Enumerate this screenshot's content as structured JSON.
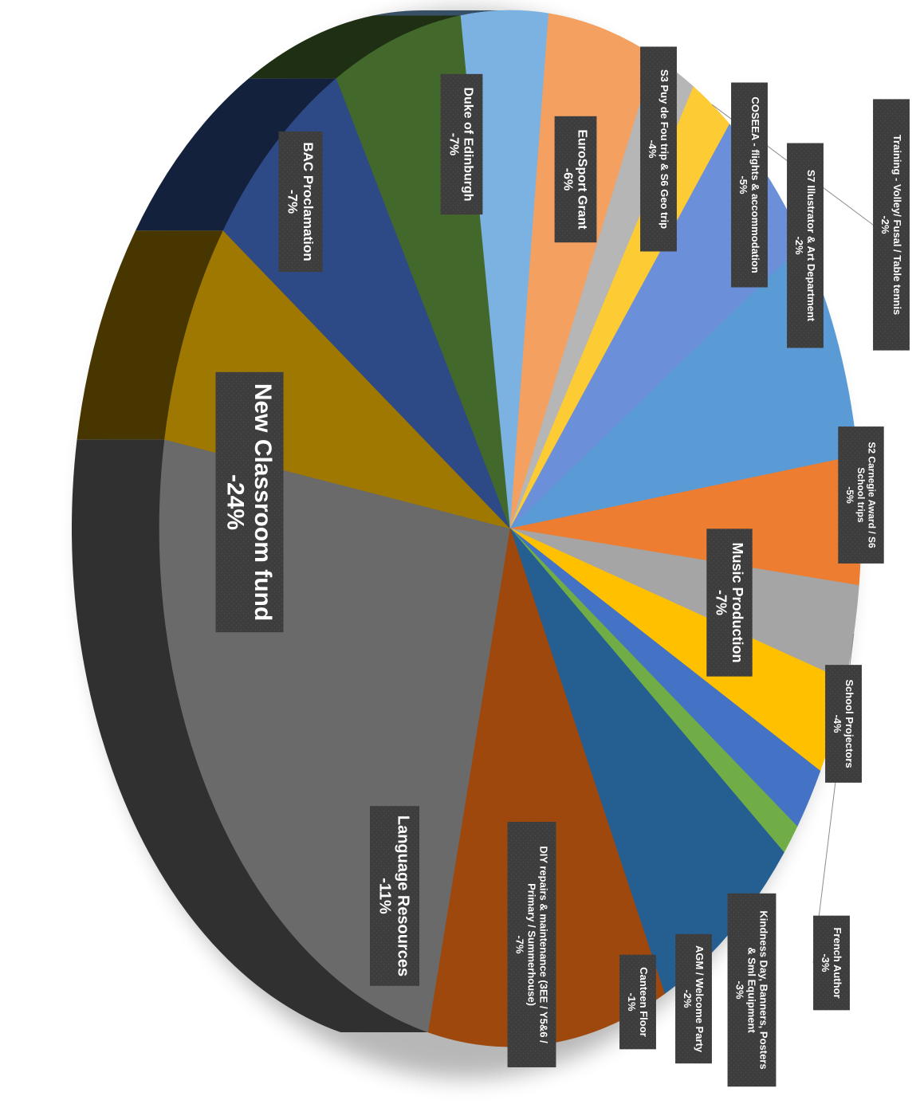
{
  "chart_data": {
    "type": "pie",
    "title": "",
    "legend": "none",
    "orientation": "rotated-90-clockwise, 3D",
    "series": [
      {
        "label": "New Classroom fund",
        "display": "-24%",
        "value": 24,
        "color": "#6a6a6a"
      },
      {
        "label": "BAC Proclamation",
        "display": "-7%",
        "value": 7,
        "color": "#9e7800"
      },
      {
        "label": "Duke of Edinburgh",
        "display": "-7%",
        "value": 7,
        "color": "#2d4a86"
      },
      {
        "label": "EuroSport Grant",
        "display": "-6%",
        "value": 6,
        "color": "#43682b"
      },
      {
        "label": "S3 Puy de Fou trip & S6 Geo trip",
        "display": "-4%",
        "value": 4,
        "color": "#7cb2e2"
      },
      {
        "label": "COSEEA - flights & accommodation",
        "display": "-5%",
        "value": 5,
        "color": "#f4a060"
      },
      {
        "label": "S7 Illustrator  & Art Department",
        "display": "-2%",
        "value": 2,
        "color": "#b6b6b6"
      },
      {
        "label": "Training - Volley/  Fusal / Table tennis",
        "display": "-2%",
        "value": 2,
        "color": "#fdcb33"
      },
      {
        "label": "S2 Carnegie Award / S6 School trips",
        "display": "-5%",
        "value": 5,
        "color": "#6b8fd8"
      },
      {
        "label": "Music Production",
        "display": "-7%",
        "value": 7,
        "color": "#5b9bd5"
      },
      {
        "label": "School Projectors",
        "display": "-4%",
        "value": 4,
        "color": "#ed7d31"
      },
      {
        "label": "French Author",
        "display": "-3%",
        "value": 3,
        "color": "#a5a5a5"
      },
      {
        "label": "Kindness Day, Banners, Posters & Sml Equipment",
        "display": "-3%",
        "value": 3,
        "color": "#ffc000"
      },
      {
        "label": "AGM / Welcome Party",
        "display": "-2%",
        "value": 2,
        "color": "#4472c4"
      },
      {
        "label": "Canteen Floor",
        "display": "-1%",
        "value": 1,
        "color": "#70ad47"
      },
      {
        "label": "DIY repairs & maintenance (3EE / Y5&6 / Primary / Summerhouse)",
        "display": "-7%",
        "value": 7,
        "color": "#255e91"
      },
      {
        "label": "Language Resources",
        "display": "-11%",
        "value": 11,
        "color": "#9e480e"
      }
    ]
  }
}
